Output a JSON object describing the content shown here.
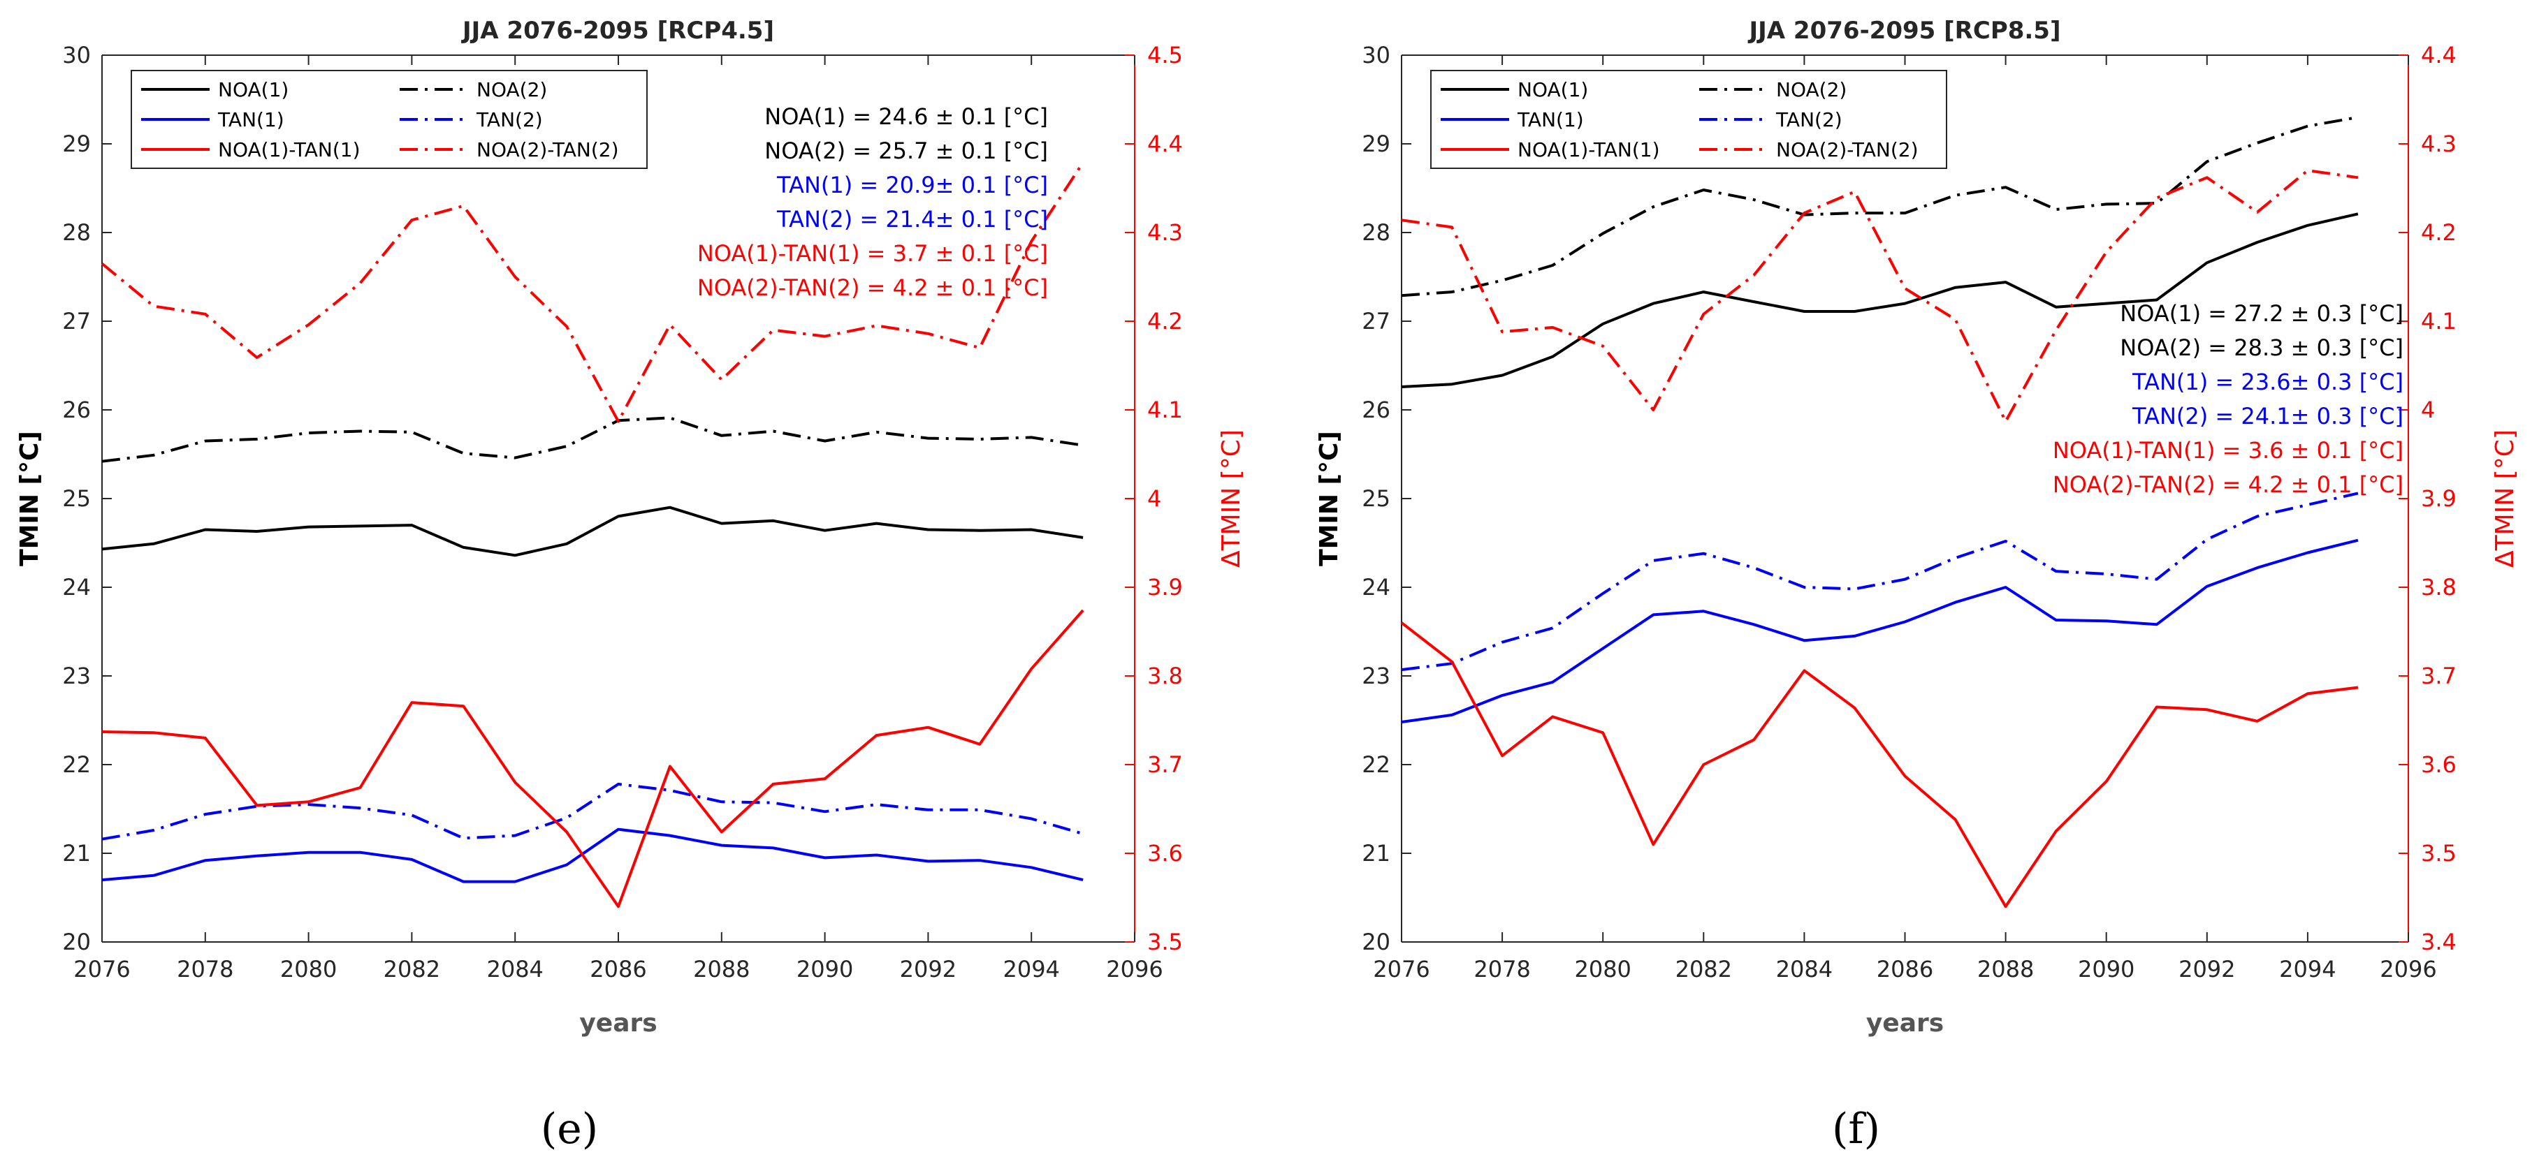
{
  "chart_data": [
    {
      "type": "line",
      "panel_label": "(e)",
      "title": "JJA 2076-2095 [RCP4.5]",
      "xlabel": "years",
      "ylabel": "TMIN [°C]",
      "ylabel_right": "ΔTMIN [°C]",
      "xlim": [
        2076,
        2096
      ],
      "xticks": [
        "2076",
        "2078",
        "2080",
        "2082",
        "2084",
        "2086",
        "2088",
        "2090",
        "2092",
        "2094",
        "2096"
      ],
      "ylim": [
        20,
        30
      ],
      "yticks": [
        "20",
        "21",
        "22",
        "23",
        "24",
        "25",
        "26",
        "27",
        "28",
        "29",
        "30"
      ],
      "ylim_right": [
        3.5,
        4.5
      ],
      "yticks_right": [
        "3.5",
        "3.6",
        "3.7",
        "3.8",
        "3.9",
        "4",
        "4.1",
        "4.2",
        "4.3",
        "4.4",
        "4.5"
      ],
      "grid": false,
      "legend_position": "top-left",
      "x": [
        2076,
        2077,
        2078,
        2079,
        2080,
        2081,
        2082,
        2083,
        2084,
        2085,
        2086,
        2087,
        2088,
        2089,
        2090,
        2091,
        2092,
        2093,
        2094,
        2095
      ],
      "series": [
        {
          "name": "NOA(1)",
          "axis": "left",
          "color": "#000000",
          "dash": "solid",
          "values": [
            24.43,
            24.49,
            24.65,
            24.63,
            24.68,
            24.69,
            24.7,
            24.45,
            24.36,
            24.49,
            24.8,
            24.9,
            24.72,
            24.75,
            24.64,
            24.72,
            24.65,
            24.64,
            24.65,
            24.56
          ]
        },
        {
          "name": "NOA(2)",
          "axis": "left",
          "color": "#000000",
          "dash": "dashdot",
          "values": [
            25.42,
            25.49,
            25.65,
            25.67,
            25.74,
            25.76,
            25.75,
            25.51,
            25.46,
            25.59,
            25.88,
            25.91,
            25.71,
            25.76,
            25.65,
            25.75,
            25.68,
            25.67,
            25.69,
            25.6
          ]
        },
        {
          "name": "TAN(1)",
          "axis": "left",
          "color": "#0000ff",
          "dash": "solid",
          "values": [
            20.7,
            20.75,
            20.92,
            20.97,
            21.01,
            21.01,
            20.93,
            20.68,
            20.68,
            20.87,
            21.27,
            21.2,
            21.09,
            21.06,
            20.95,
            20.98,
            20.91,
            20.92,
            20.84,
            20.7
          ]
        },
        {
          "name": "TAN(2)",
          "axis": "left",
          "color": "#0000ff",
          "dash": "dashdot",
          "values": [
            21.16,
            21.26,
            21.44,
            21.53,
            21.55,
            21.51,
            21.43,
            21.17,
            21.2,
            21.4,
            21.78,
            21.71,
            21.58,
            21.57,
            21.47,
            21.55,
            21.49,
            21.49,
            21.39,
            21.22
          ]
        },
        {
          "name": "NOA(1)-TAN(1)",
          "axis": "right",
          "color": "#ff0000",
          "dash": "solid",
          "values": [
            3.737,
            3.736,
            3.73,
            3.654,
            3.658,
            3.674,
            3.77,
            3.766,
            3.68,
            3.624,
            3.54,
            3.698,
            3.624,
            3.678,
            3.684,
            3.733,
            3.742,
            3.723,
            3.808,
            3.874
          ]
        },
        {
          "name": "NOA(2)-TAN(2)",
          "axis": "right",
          "color": "#ff0000",
          "dash": "dashdot",
          "values": [
            4.265,
            4.217,
            4.208,
            4.159,
            4.196,
            4.243,
            4.314,
            4.33,
            4.25,
            4.194,
            4.087,
            4.196,
            4.134,
            4.19,
            4.183,
            4.195,
            4.186,
            4.17,
            4.29,
            4.379
          ]
        }
      ],
      "annotations": [
        {
          "text": "NOA(1) = 24.6 ± 0.1 [°C]",
          "color": "#000000"
        },
        {
          "text": "NOA(2) = 25.7 ± 0.1 [°C]",
          "color": "#000000"
        },
        {
          "text": "TAN(1) = 20.9± 0.1 [°C]",
          "color": "#0000ff"
        },
        {
          "text": "TAN(2) = 21.4± 0.1 [°C]",
          "color": "#0000ff"
        },
        {
          "text": "NOA(1)-TAN(1) = 3.7 ± 0.1 [°C]",
          "color": "#ff0000"
        },
        {
          "text": "NOA(2)-TAN(2) = 4.2 ± 0.1 [°C]",
          "color": "#ff0000"
        }
      ]
    },
    {
      "type": "line",
      "panel_label": "(f)",
      "title": "JJA 2076-2095 [RCP8.5]",
      "xlabel": "years",
      "ylabel": "TMIN [°C]",
      "ylabel_right": "ΔTMIN [°C]",
      "xlim": [
        2076,
        2096
      ],
      "xticks": [
        "2076",
        "2078",
        "2080",
        "2082",
        "2084",
        "2086",
        "2088",
        "2090",
        "2092",
        "2094",
        "2096"
      ],
      "ylim": [
        20,
        30
      ],
      "yticks": [
        "20",
        "21",
        "22",
        "23",
        "24",
        "25",
        "26",
        "27",
        "28",
        "29",
        "30"
      ],
      "ylim_right": [
        3.4,
        4.4
      ],
      "yticks_right": [
        "3.4",
        "3.5",
        "3.6",
        "3.7",
        "3.8",
        "3.9",
        "4",
        "4.1",
        "4.2",
        "4.3",
        "4.4"
      ],
      "grid": false,
      "legend_position": "top-left",
      "x": [
        2076,
        2077,
        2078,
        2079,
        2080,
        2081,
        2082,
        2083,
        2084,
        2085,
        2086,
        2087,
        2088,
        2089,
        2090,
        2091,
        2092,
        2093,
        2094,
        2095
      ],
      "series": [
        {
          "name": "NOA(1)",
          "axis": "left",
          "color": "#000000",
          "dash": "solid",
          "values": [
            26.26,
            26.29,
            26.39,
            26.6,
            26.97,
            27.2,
            27.33,
            27.22,
            27.11,
            27.11,
            27.2,
            27.38,
            27.44,
            27.16,
            27.2,
            27.24,
            27.66,
            27.89,
            28.08,
            28.21
          ]
        },
        {
          "name": "NOA(2)",
          "axis": "left",
          "color": "#000000",
          "dash": "dashdot",
          "values": [
            27.29,
            27.33,
            27.46,
            27.63,
            27.99,
            28.29,
            28.48,
            28.37,
            28.2,
            28.22,
            28.22,
            28.42,
            28.51,
            28.26,
            28.32,
            28.33,
            28.8,
            29.01,
            29.2,
            29.3
          ]
        },
        {
          "name": "TAN(1)",
          "axis": "left",
          "color": "#0000ff",
          "dash": "solid",
          "values": [
            22.48,
            22.56,
            22.78,
            22.93,
            23.31,
            23.69,
            23.73,
            23.58,
            23.4,
            23.45,
            23.61,
            23.83,
            24.0,
            23.63,
            23.62,
            23.58,
            24.01,
            24.22,
            24.39,
            24.53
          ]
        },
        {
          "name": "TAN(2)",
          "axis": "left",
          "color": "#0000ff",
          "dash": "dashdot",
          "values": [
            23.07,
            23.14,
            23.38,
            23.54,
            23.93,
            24.3,
            24.38,
            24.22,
            24.0,
            23.98,
            24.09,
            24.33,
            24.52,
            24.18,
            24.15,
            24.09,
            24.54,
            24.8,
            24.93,
            25.06
          ]
        },
        {
          "name": "NOA(1)-TAN(1)",
          "axis": "right",
          "color": "#ff0000",
          "dash": "solid",
          "values": [
            3.76,
            3.716,
            3.61,
            3.654,
            3.636,
            3.51,
            3.6,
            3.628,
            3.706,
            3.664,
            3.587,
            3.538,
            3.44,
            3.525,
            3.581,
            3.665,
            3.662,
            3.649,
            3.68,
            3.687
          ]
        },
        {
          "name": "NOA(2)-TAN(2)",
          "axis": "right",
          "color": "#ff0000",
          "dash": "dashdot",
          "values": [
            4.214,
            4.206,
            4.088,
            4.093,
            4.072,
            4.0,
            4.108,
            4.152,
            4.222,
            4.246,
            4.137,
            4.102,
            3.987,
            4.09,
            4.178,
            4.239,
            4.262,
            4.223,
            4.27,
            4.262
          ]
        }
      ],
      "annotations": [
        {
          "text": "NOA(1) = 27.2 ± 0.3 [°C]",
          "color": "#000000"
        },
        {
          "text": "NOA(2) = 28.3 ± 0.3 [°C]",
          "color": "#000000"
        },
        {
          "text": "TAN(1) = 23.6± 0.3 [°C]",
          "color": "#0000ff"
        },
        {
          "text": "TAN(2) = 24.1± 0.3 [°C]",
          "color": "#0000ff"
        },
        {
          "text": "NOA(1)-TAN(1) = 3.6 ± 0.1 [°C]",
          "color": "#ff0000"
        },
        {
          "text": "NOA(2)-TAN(2) = 4.2 ± 0.1 [°C]",
          "color": "#ff0000"
        }
      ]
    }
  ]
}
